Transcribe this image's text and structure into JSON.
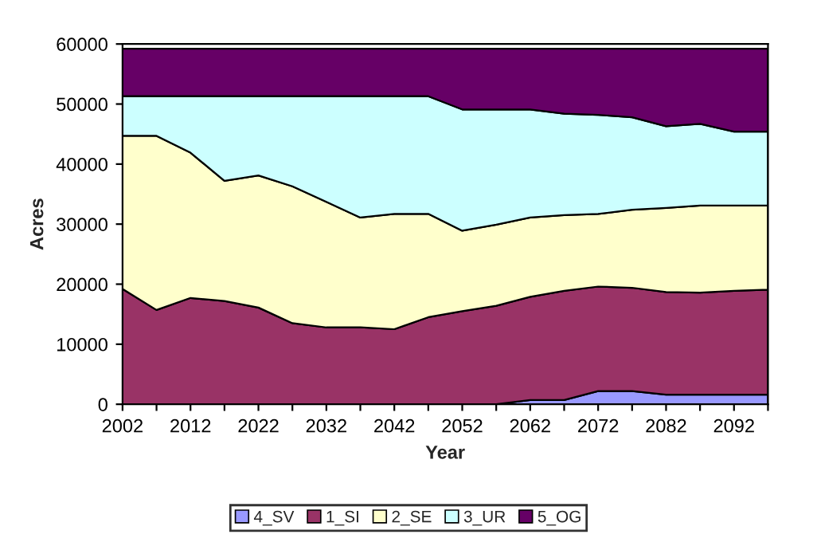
{
  "chart_data": {
    "type": "area",
    "stacked": true,
    "xlabel": "Year",
    "ylabel": "Acres",
    "x": [
      2002,
      2007,
      2012,
      2017,
      2022,
      2027,
      2032,
      2037,
      2042,
      2047,
      2052,
      2057,
      2062,
      2067,
      2072,
      2077,
      2082,
      2087,
      2092,
      2097
    ],
    "xlim": [
      2002,
      2097
    ],
    "xticks": [
      2002,
      {
        "value": 2007,
        "label": null
      },
      2012,
      {
        "value": 2017,
        "label": null
      },
      2022,
      {
        "value": 2027,
        "label": null
      },
      2032,
      {
        "value": 2037,
        "label": null
      },
      2042,
      {
        "value": 2047,
        "label": null
      },
      2052,
      {
        "value": 2057,
        "label": null
      },
      2062,
      {
        "value": 2067,
        "label": null
      },
      2072,
      {
        "value": 2077,
        "label": null
      },
      2082,
      {
        "value": 2087,
        "label": null
      },
      2092,
      {
        "value": 2097,
        "label": null
      }
    ],
    "ylim": [
      0,
      60000
    ],
    "yticks": [
      0,
      10000,
      20000,
      30000,
      40000,
      50000,
      60000
    ],
    "grid": false,
    "legend": "bottom",
    "series": [
      {
        "name": "4_SV",
        "color": "#9999ff",
        "values": [
          0,
          0,
          0,
          0,
          0,
          0,
          0,
          0,
          0,
          0,
          0,
          0,
          700,
          700,
          2200,
          2200,
          1600,
          1600,
          1600,
          1600
        ]
      },
      {
        "name": "1_SI",
        "color": "#993366",
        "values": [
          19200,
          15700,
          17700,
          17200,
          16100,
          13500,
          12800,
          12800,
          12500,
          14500,
          15500,
          16400,
          17200,
          18200,
          17400,
          17200,
          17100,
          17000,
          17300,
          17500
        ]
      },
      {
        "name": "2_SE",
        "color": "#ffffcc",
        "values": [
          25500,
          29000,
          24200,
          20000,
          22000,
          22800,
          20900,
          18300,
          19200,
          17200,
          13400,
          13500,
          13200,
          12600,
          12100,
          13000,
          14000,
          14500,
          14200,
          14000
        ]
      },
      {
        "name": "3_UR",
        "color": "#ccffff",
        "values": [
          6600,
          6600,
          9400,
          14100,
          13200,
          15000,
          17600,
          20200,
          19600,
          19600,
          20200,
          19200,
          18000,
          16900,
          16500,
          15400,
          13600,
          13600,
          12300,
          12300
        ]
      },
      {
        "name": "5_OG",
        "color": "#660066",
        "values": [
          7900,
          7900,
          7900,
          7900,
          7900,
          7900,
          7900,
          7900,
          7900,
          7900,
          10100,
          10100,
          10100,
          10800,
          11000,
          11400,
          12900,
          12500,
          13800,
          13800
        ]
      }
    ]
  }
}
